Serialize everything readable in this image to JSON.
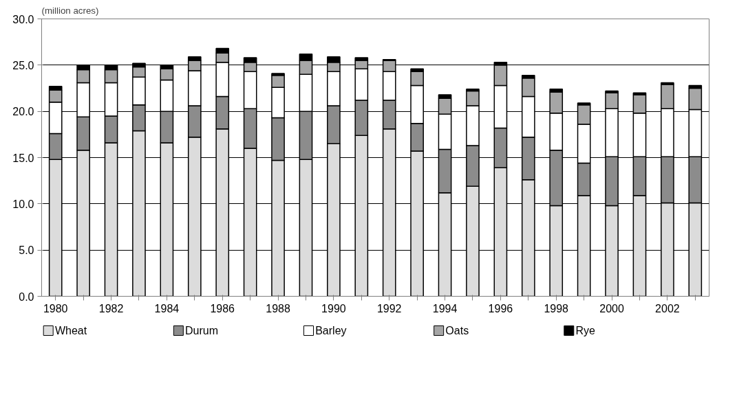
{
  "chart_data": {
    "type": "bar",
    "stacked": true,
    "ylabel": "(million acres)",
    "categories": [
      "1980",
      null,
      "1982",
      null,
      "1984",
      null,
      "1986",
      null,
      "1988",
      null,
      "1990",
      null,
      "1992",
      null,
      "1994",
      null,
      "1996",
      null,
      "1998",
      null,
      "2000",
      null,
      "2002",
      null
    ],
    "series": [
      {
        "name": "Wheat",
        "color": "#dcdcdc",
        "values": [
          14.8,
          15.8,
          16.6,
          17.9,
          16.6,
          17.2,
          18.1,
          16.0,
          14.7,
          14.8,
          16.5,
          17.4,
          18.1,
          15.7,
          11.2,
          11.9,
          13.9,
          12.6,
          9.8,
          10.9,
          9.8,
          10.9,
          10.1,
          10.1
        ]
      },
      {
        "name": "Durum",
        "color": "#8c8c8c",
        "values": [
          2.8,
          3.6,
          2.9,
          2.8,
          3.4,
          3.4,
          3.5,
          4.3,
          4.6,
          5.2,
          4.1,
          3.8,
          3.1,
          3.0,
          4.7,
          4.4,
          4.3,
          4.6,
          6.0,
          3.5,
          5.3,
          4.2,
          5.0,
          5.0
        ]
      },
      {
        "name": "Barley",
        "color": "#ffffff",
        "values": [
          3.4,
          3.7,
          3.6,
          3.0,
          3.4,
          3.8,
          3.7,
          4.0,
          3.3,
          4.0,
          3.7,
          3.4,
          3.1,
          4.1,
          3.8,
          4.3,
          4.6,
          4.4,
          4.0,
          4.2,
          5.2,
          4.7,
          5.2,
          5.1
        ]
      },
      {
        "name": "Oats",
        "color": "#a6a6a6",
        "values": [
          1.3,
          1.4,
          1.4,
          1.1,
          1.2,
          1.1,
          1.0,
          1.0,
          1.3,
          1.5,
          1.0,
          0.9,
          1.2,
          1.5,
          1.7,
          1.6,
          2.2,
          2.0,
          2.3,
          2.1,
          1.7,
          2.0,
          2.6,
          2.3
        ]
      },
      {
        "name": "Rye",
        "color": "#000000",
        "values": [
          0.4,
          0.5,
          0.5,
          0.4,
          0.4,
          0.4,
          0.5,
          0.5,
          0.2,
          0.7,
          0.6,
          0.3,
          0.1,
          0.3,
          0.4,
          0.2,
          0.3,
          0.3,
          0.3,
          0.2,
          0.2,
          0.2,
          0.2,
          0.3
        ]
      }
    ],
    "ylim": [
      0,
      30
    ],
    "yticks": [
      {
        "value": 0,
        "label": "0.0"
      },
      {
        "value": 5,
        "label": "5.0"
      },
      {
        "value": 10,
        "label": "10.0"
      },
      {
        "value": 15,
        "label": "15.0"
      },
      {
        "value": 20,
        "label": "20.0"
      },
      {
        "value": 25,
        "label": "25.0"
      },
      {
        "value": 30,
        "label": "30.0"
      }
    ],
    "grid": "y",
    "legend": "bottom"
  }
}
